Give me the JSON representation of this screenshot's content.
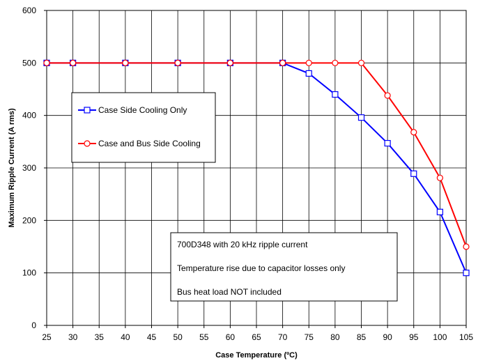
{
  "chart_data": {
    "type": "line",
    "title": "",
    "xlabel": "Case Temperature (ºC)",
    "ylabel": "Maximum Ripple Current (A rms)",
    "xticks": [
      25,
      30,
      35,
      40,
      45,
      50,
      55,
      60,
      65,
      70,
      75,
      80,
      85,
      90,
      95,
      100,
      105
    ],
    "yticks": [
      0,
      100,
      200,
      300,
      400,
      500,
      600
    ],
    "xlim": [
      25,
      105
    ],
    "ylim": [
      0,
      600
    ],
    "grid": true,
    "series": [
      {
        "name": "Case Side Cooling Only",
        "color": "#0000ff",
        "marker": "square",
        "x": [
          25,
          30,
          40,
          50,
          60,
          70,
          75,
          80,
          85,
          90,
          95,
          100,
          105
        ],
        "y": [
          500,
          500,
          500,
          500,
          500,
          500,
          480,
          440,
          396,
          347,
          289,
          216,
          100
        ]
      },
      {
        "name": "Case and Bus Side Cooling",
        "color": "#ff0000",
        "marker": "circle",
        "x": [
          25,
          30,
          40,
          50,
          60,
          70,
          75,
          80,
          85,
          90,
          95,
          100,
          105
        ],
        "y": [
          500,
          500,
          500,
          500,
          500,
          500,
          500,
          500,
          500,
          438,
          368,
          281,
          150
        ]
      }
    ],
    "legend_position": "upper-left",
    "annotation_lines": [
      "700D348 with 20 kHz ripple current",
      "Temperature rise due to capacitor losses only",
      "Bus heat load NOT included"
    ]
  }
}
